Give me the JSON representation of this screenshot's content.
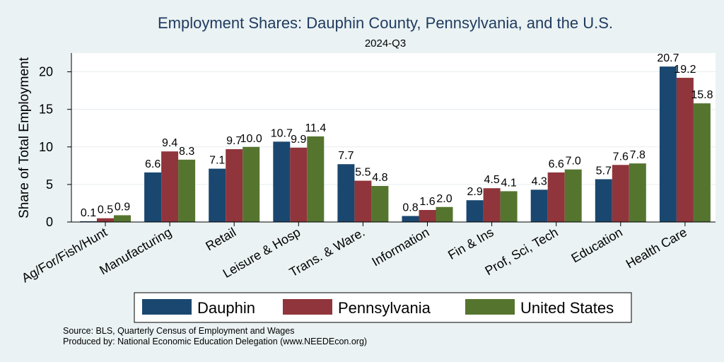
{
  "chart_data": {
    "type": "bar",
    "title": "Employment Shares: Dauphin County, Pennsylvania, and the U.S.",
    "subtitle": "2024-Q3",
    "ylabel": "Share of Total Employment",
    "xlabel": "",
    "ylim": [
      0,
      22.5
    ],
    "yticks": [
      0,
      5,
      10,
      15,
      20
    ],
    "grid": "horizontal",
    "legend_position": "bottom",
    "categories": [
      "Ag/For/Fish/Hunt",
      "Manufacturing",
      "Retail",
      "Leisure & Hosp",
      "Trans. & Ware.",
      "Information",
      "Fin & Ins",
      "Prof, Sci, Tech",
      "Education",
      "Health Care"
    ],
    "series": [
      {
        "name": "Dauphin",
        "color": "#1a476f",
        "values": [
          0.1,
          6.6,
          7.1,
          10.7,
          7.7,
          0.8,
          2.9,
          4.3,
          5.7,
          20.7
        ],
        "labels": [
          "0.1",
          "6.6",
          "7.1",
          "10.7",
          "7.7",
          "0.8",
          "2.9",
          "4.3",
          "5.7",
          "20.7"
        ]
      },
      {
        "name": "Pennsylvania",
        "color": "#90353b",
        "values": [
          0.5,
          9.4,
          9.7,
          9.9,
          5.5,
          1.6,
          4.5,
          6.6,
          7.6,
          19.2
        ],
        "labels": [
          "0.5",
          "9.4",
          "9.7",
          "9.9",
          "5.5",
          "1.6",
          "4.5",
          "6.6",
          "7.6",
          "19.2"
        ]
      },
      {
        "name": "United States",
        "color": "#55752f",
        "values": [
          0.9,
          8.3,
          10.0,
          11.4,
          4.8,
          2.0,
          4.1,
          7.0,
          7.8,
          15.8
        ],
        "labels": [
          "0.9",
          "8.3",
          "10.0",
          "11.4",
          "4.8",
          "2.0",
          "4.1",
          "7.0",
          "7.8",
          "15.8"
        ]
      }
    ]
  },
  "source_lines": [
    "Source: BLS, Quarterly Census of Employment and Wages",
    "Produced by: National Economic Education Delegation (www.NEEDEcon.org)"
  ]
}
